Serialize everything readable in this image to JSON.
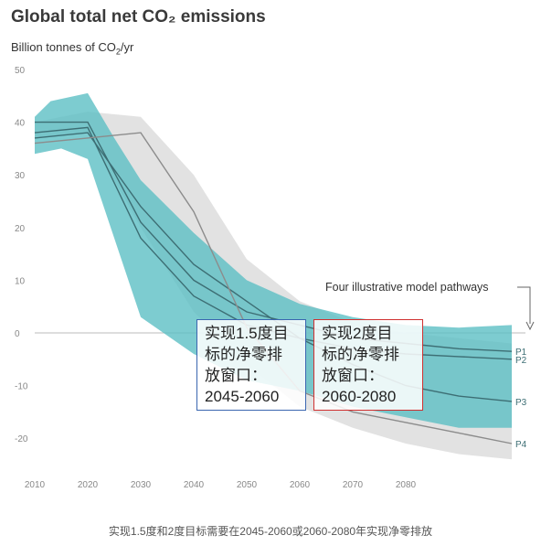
{
  "title": "Global total net CO₂ emissions",
  "ylabel_main": "Billion tonnes of CO",
  "ylabel_sub": "2",
  "ylabel_unit": "/yr",
  "pathways_label": "Four illustrative model pathways",
  "box_15": {
    "line1": "实现1.5度目",
    "line2": "标的净零排",
    "line3": "放窗口：",
    "line4": "2045-2060"
  },
  "box_2": {
    "line1": "实现2度目",
    "line2": "标的净零排",
    "line3": "放窗口：",
    "line4": "2060-2080"
  },
  "caption": "实现1.5度和2度目标需要在2045-2060或2060-2080年实现净零排放",
  "colors": {
    "teal_band": "#5cbfc4",
    "grey_band": "#d8d8d8",
    "line_dark": "#3d6e74",
    "grey_line": "#8c8c8c",
    "tick": "#888888"
  },
  "chart_data": {
    "type": "area",
    "x_ticks": [
      "2010",
      "2020",
      "2030",
      "2040",
      "2050",
      "2060",
      "2070",
      "2080"
    ],
    "y_ticks": [
      "50",
      "40",
      "30",
      "20",
      "10",
      "0",
      "-10",
      "-20"
    ],
    "xlim": [
      2010,
      2100
    ],
    "ylim": [
      -25,
      50
    ],
    "bands": [
      {
        "name": "grey",
        "upper": [
          [
            2010,
            40
          ],
          [
            2015,
            41
          ],
          [
            2020,
            42
          ],
          [
            2030,
            41
          ],
          [
            2040,
            30
          ],
          [
            2050,
            14
          ],
          [
            2060,
            6
          ],
          [
            2070,
            2
          ],
          [
            2080,
            0
          ],
          [
            2090,
            -1
          ],
          [
            2100,
            -2
          ]
        ],
        "lower": [
          [
            2010,
            37
          ],
          [
            2020,
            38
          ],
          [
            2030,
            20
          ],
          [
            2040,
            4
          ],
          [
            2050,
            -6
          ],
          [
            2060,
            -14
          ],
          [
            2070,
            -18
          ],
          [
            2080,
            -21
          ],
          [
            2090,
            -23
          ],
          [
            2100,
            -24
          ]
        ]
      },
      {
        "name": "teal",
        "upper": [
          [
            2010,
            41
          ],
          [
            2013,
            44
          ],
          [
            2020,
            45.5
          ],
          [
            2025,
            37
          ],
          [
            2030,
            29
          ],
          [
            2040,
            19
          ],
          [
            2050,
            10
          ],
          [
            2060,
            5.5
          ],
          [
            2070,
            3
          ],
          [
            2080,
            1.5
          ],
          [
            2090,
            1
          ],
          [
            2100,
            1.5
          ]
        ],
        "lower": [
          [
            2010,
            34
          ],
          [
            2015,
            35
          ],
          [
            2020,
            33
          ],
          [
            2025,
            18
          ],
          [
            2030,
            3
          ],
          [
            2040,
            -4
          ],
          [
            2050,
            -9
          ],
          [
            2060,
            -11
          ],
          [
            2070,
            -14
          ],
          [
            2080,
            -16
          ],
          [
            2090,
            -18
          ],
          [
            2100,
            -18
          ]
        ]
      }
    ],
    "series": [
      {
        "name": "P1",
        "values": [
          [
            2010,
            40
          ],
          [
            2020,
            40
          ],
          [
            2030,
            21
          ],
          [
            2040,
            10
          ],
          [
            2050,
            4
          ],
          [
            2060,
            1.5
          ],
          [
            2070,
            -1
          ],
          [
            2080,
            -2
          ],
          [
            2090,
            -3
          ],
          [
            2100,
            -3.5
          ]
        ]
      },
      {
        "name": "P2",
        "values": [
          [
            2010,
            38
          ],
          [
            2020,
            39
          ],
          [
            2030,
            18
          ],
          [
            2040,
            7
          ],
          [
            2050,
            1.5
          ],
          [
            2060,
            -1
          ],
          [
            2070,
            -3
          ],
          [
            2080,
            -4
          ],
          [
            2090,
            -4.5
          ],
          [
            2100,
            -5
          ]
        ]
      },
      {
        "name": "P3",
        "values": [
          [
            2010,
            37
          ],
          [
            2020,
            38
          ],
          [
            2030,
            24
          ],
          [
            2040,
            13
          ],
          [
            2050,
            6
          ],
          [
            2060,
            -1
          ],
          [
            2070,
            -6
          ],
          [
            2080,
            -10
          ],
          [
            2090,
            -12
          ],
          [
            2100,
            -13
          ]
        ]
      },
      {
        "name": "P4",
        "values": [
          [
            2010,
            36
          ],
          [
            2020,
            37
          ],
          [
            2030,
            38
          ],
          [
            2040,
            23
          ],
          [
            2050,
            1
          ],
          [
            2060,
            -11
          ],
          [
            2070,
            -15
          ],
          [
            2080,
            -17
          ],
          [
            2090,
            -19
          ],
          [
            2100,
            -21
          ]
        ]
      }
    ]
  }
}
